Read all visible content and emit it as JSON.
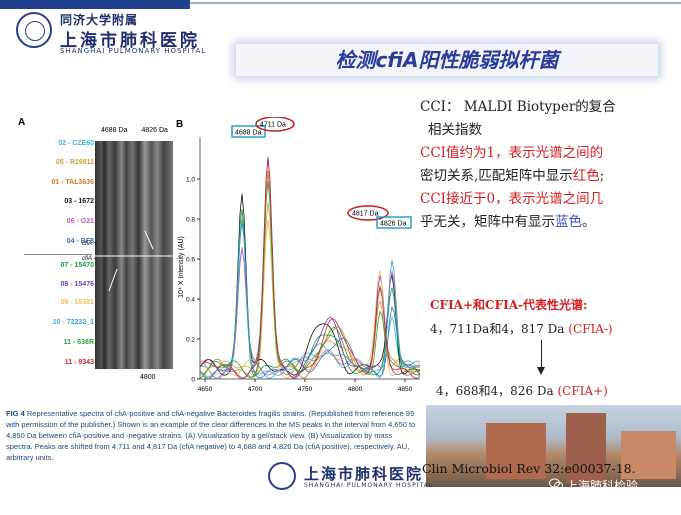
{
  "header": {
    "hospital_line1": "同济大学附属",
    "hospital_line2": "上海市肺科医院",
    "hospital_en": "SHANGHAI PULMONARY HOSPITAL"
  },
  "slide": {
    "title_pre": "检测",
    "title_italic": "cfiA",
    "title_post": "阳性脆弱拟杆菌"
  },
  "figureA": {
    "label": "A",
    "col1": "4688 Da",
    "col2": "4826 Da",
    "bottom_tick": "4800",
    "cfia_pos": "cfiA +",
    "cfia_neg": "cfiA −",
    "strains": [
      {
        "name": "02 - CZE60",
        "color": "#3cb4e0"
      },
      {
        "name": "05 - R19811",
        "color": "#c9a23a"
      },
      {
        "name": "01 - TAL3636",
        "color": "#d07a2a"
      },
      {
        "name": "03 - 1672",
        "color": "#111111"
      },
      {
        "name": "06 - O21",
        "color": "#c060c0"
      },
      {
        "name": "04 - BF8",
        "color": "#3a6fc0"
      },
      {
        "name": "07 - 15470",
        "color": "#1a9a3a"
      },
      {
        "name": "08 - 15476",
        "color": "#7a3ab0"
      },
      {
        "name": "09 - 15381",
        "color": "#e8c060"
      },
      {
        "name": "10 - 72232_1",
        "color": "#3aa0d0"
      },
      {
        "name": "11 - 638R",
        "color": "#3a9a3a"
      },
      {
        "name": "11 - 9343",
        "color": "#c03030"
      }
    ]
  },
  "figureB": {
    "label": "B",
    "ylabel": "10⁴ X Intensity (AU)",
    "yticks": [
      "0",
      "0.2",
      "0.4",
      "0.6",
      "0.8",
      "1.0"
    ],
    "xticks": [
      "4650",
      "4700",
      "4750",
      "4800",
      "4850"
    ],
    "peak_labels": {
      "p4688": "4688 Da",
      "p4711": "4711 Da",
      "p4817": "4817 Da",
      "p4826": "4826 Da"
    }
  },
  "explain": {
    "l1": "CCI： MALDI Biotyper的复合",
    "l2": "相关指数",
    "l3": "CCI值约为1，表示光谱之间的",
    "l4a": "密切关系,匹配矩阵中显示",
    "l4b": "红色",
    "l4c": ";",
    "l5": "CCI接近于0，表示光谱之间几",
    "l6a": "乎无关，矩阵中有显示",
    "l6b": "蓝色",
    "l6c": "。"
  },
  "cfia_block": {
    "heading": "CFIA+和CFIA-代表性光谱:",
    "neg_text": "4，711Da和4，817 Da ",
    "neg_tag": "(CFIA-)",
    "pos_text": "4，688和4，826 Da ",
    "pos_tag": "(CFIA+)"
  },
  "caption": {
    "fig": "FIG 4",
    "text": "Representative spectra of cfiA-positive and cfiA-negative Bacteroides fragilis strains. (Republished from reference 99 with permission of the publisher.) Shown is an example of the clear differences in the MS peaks in the interval from 4,650 to 4,850 Da between cfiA-positive and -negative strains. (A) Visualization by a gel/stack view. (B) Visualization by mass spectra. Peaks are shifted from 4,711 and 4,817 Da (cfiA negative) to 4,688 and 4,826 Da (cfiA positive), respectively. AU, arbitrary units."
  },
  "reference": "Clin Microbiol Rev 32:e00037-18.",
  "watermark": "上海肺科检验"
}
